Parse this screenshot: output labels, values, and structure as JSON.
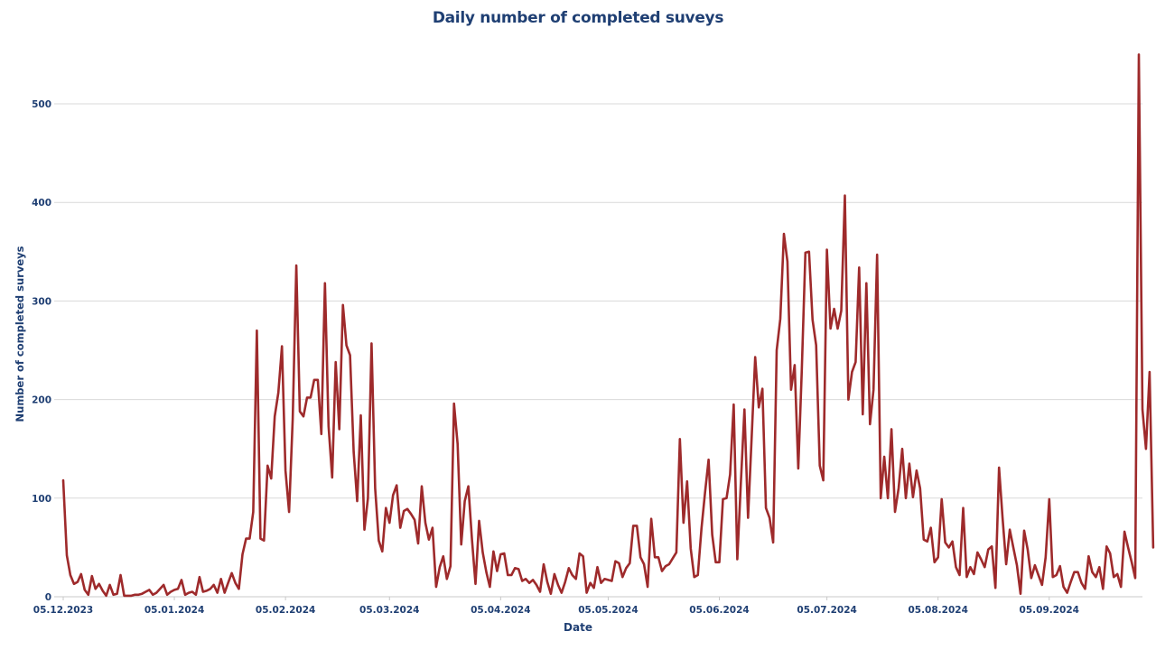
{
  "chart_data": {
    "type": "line",
    "title": "Daily number of completed suveys",
    "xlabel": "Date",
    "ylabel": "Number of completed surveys",
    "start_date": "05.12.2023",
    "x_unit": "days since start date",
    "ylim": [
      0,
      550
    ],
    "yticks": [
      0,
      100,
      200,
      300,
      400,
      500
    ],
    "xticks": [
      {
        "label": "05.12.2023",
        "day": 0
      },
      {
        "label": "05.01.2024",
        "day": 31
      },
      {
        "label": "05.02.2024",
        "day": 62
      },
      {
        "label": "05.03.2024",
        "day": 91
      },
      {
        "label": "05.04.2024",
        "day": 122
      },
      {
        "label": "05.05.2024",
        "day": 152
      },
      {
        "label": "05.06.2024",
        "day": 183
      },
      {
        "label": "05.07.2024",
        "day": 213
      },
      {
        "label": "05.08.2024",
        "day": 244
      },
      {
        "label": "05.09.2024",
        "day": 275
      }
    ],
    "grid": true,
    "legend": "none",
    "series": [
      {
        "name": "Completed surveys",
        "color": "#9e2a2b",
        "values": [
          118,
          42,
          22,
          13,
          15,
          23,
          7,
          2,
          21,
          8,
          13,
          6,
          1,
          12,
          2,
          3,
          22,
          1,
          1,
          1,
          2,
          2,
          3,
          5,
          7,
          2,
          4,
          8,
          12,
          2,
          5,
          7,
          8,
          17,
          2,
          4,
          5,
          2,
          20,
          5,
          6,
          8,
          12,
          4,
          18,
          4,
          14,
          24,
          14,
          8,
          43,
          59,
          59,
          86,
          270,
          59,
          57,
          133,
          120,
          183,
          207,
          254,
          128,
          86,
          180,
          336,
          188,
          183,
          202,
          202,
          220,
          220,
          165,
          318,
          173,
          121,
          238,
          170,
          296,
          255,
          245,
          147,
          97,
          184,
          68,
          100,
          257,
          110,
          57,
          46,
          90,
          75,
          103,
          113,
          70,
          87,
          89,
          84,
          78,
          54,
          112,
          75,
          58,
          70,
          10,
          30,
          41,
          18,
          31,
          196,
          155,
          53,
          97,
          112,
          58,
          13,
          77,
          45,
          25,
          10,
          46,
          26,
          43,
          44,
          22,
          22,
          29,
          28,
          16,
          18,
          14,
          17,
          12,
          5,
          33,
          15,
          3,
          23,
          12,
          4,
          15,
          29,
          22,
          18,
          44,
          41,
          4,
          14,
          9,
          30,
          14,
          18,
          17,
          16,
          36,
          34,
          20,
          29,
          34,
          72,
          72,
          40,
          33,
          10,
          79,
          40,
          40,
          26,
          31,
          33,
          39,
          45,
          160,
          75,
          117,
          49,
          20,
          22,
          69,
          105,
          139,
          63,
          35,
          35,
          99,
          100,
          124,
          195,
          38,
          115,
          190,
          80,
          160,
          243,
          192,
          211,
          90,
          80,
          55,
          250,
          282,
          368,
          340,
          210,
          235,
          130,
          230,
          349,
          350,
          281,
          255,
          133,
          118,
          352,
          272,
          292,
          272,
          290,
          407,
          200,
          228,
          238,
          334,
          185,
          318,
          175,
          210,
          347,
          100,
          142,
          100,
          170,
          86,
          110,
          150,
          100,
          135,
          101,
          128,
          110,
          58,
          56,
          70,
          35,
          40,
          99,
          55,
          50,
          56,
          30,
          22,
          90,
          20,
          30,
          23,
          45,
          38,
          30,
          48,
          51,
          9,
          131,
          80,
          33,
          68,
          50,
          32,
          3,
          67,
          48,
          19,
          32,
          22,
          12,
          40,
          99,
          20,
          22,
          31,
          10,
          4,
          15,
          25,
          25,
          14,
          8,
          41,
          25,
          20,
          30,
          8,
          51,
          44,
          20,
          23,
          10,
          66,
          50,
          35,
          19,
          550,
          190,
          150,
          228,
          50
        ]
      }
    ]
  }
}
